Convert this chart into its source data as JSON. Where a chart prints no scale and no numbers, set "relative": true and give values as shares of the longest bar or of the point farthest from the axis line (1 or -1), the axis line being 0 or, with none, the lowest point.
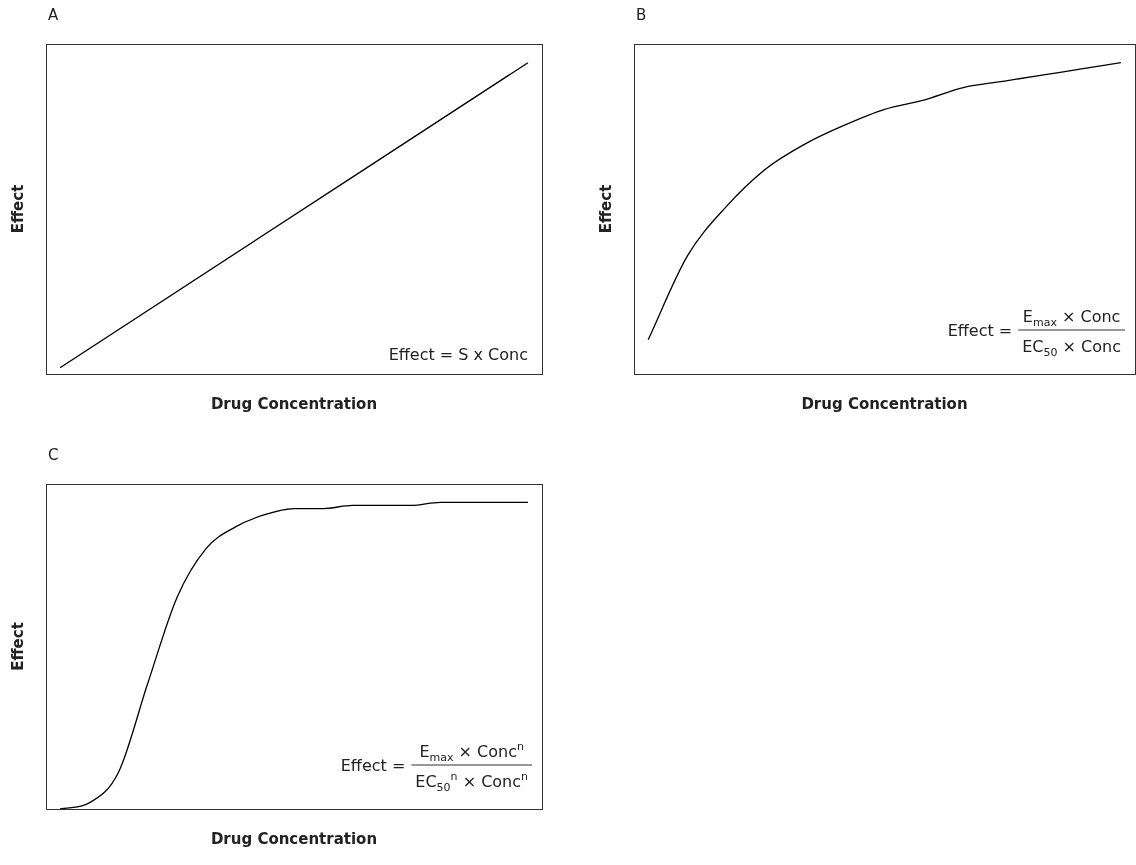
{
  "chart_data": [
    {
      "type": "line",
      "title": "A",
      "xlabel": "Drug Concentration",
      "ylabel": "Effect",
      "relative": true,
      "categories": [
        null,
        null
      ],
      "series": [
        {
          "color": "#000000",
          "values": [
            0.02,
            1
          ]
        }
      ],
      "annotations": [
        "Effect = S x Conc"
      ]
    },
    {
      "type": "line",
      "title": "B",
      "xlabel": "Drug Concentration",
      "ylabel": "Effect",
      "relative": true,
      "categories": [
        null,
        null,
        null,
        null,
        null,
        null,
        null,
        null,
        null,
        null,
        null,
        null,
        null
      ],
      "series": [
        {
          "color": "#000000",
          "values": [
            0.11,
            0.38,
            0.54,
            0.66,
            0.74,
            0.8,
            0.85,
            0.88,
            0.92,
            0.94,
            0.96,
            0.98,
            1
          ]
        }
      ],
      "annotations": [
        "Effect =",
        "E$_{max}$ × Conc",
        "EC$_{50}$ × Conc"
      ]
    },
    {
      "type": "line",
      "title": "C",
      "xlabel": "Drug Concentration",
      "ylabel": "Effect",
      "relative": true,
      "categories": [
        null,
        null,
        null,
        null,
        null,
        null,
        null,
        null,
        null,
        null,
        null,
        null,
        null,
        null,
        null,
        null,
        null
      ],
      "series": [
        {
          "color": "#000000",
          "values": [
            0.0,
            0.02,
            0.12,
            0.41,
            0.69,
            0.85,
            0.92,
            0.96,
            0.98,
            0.98,
            0.99,
            0.99,
            0.99,
            1,
            1,
            1,
            1
          ]
        }
      ],
      "annotations": [
        "Effect =",
        "E$_{max}$ × Conc$^{n}$",
        "EC$_{50}$$^{n}$ × Conc$^{n}$"
      ]
    }
  ]
}
